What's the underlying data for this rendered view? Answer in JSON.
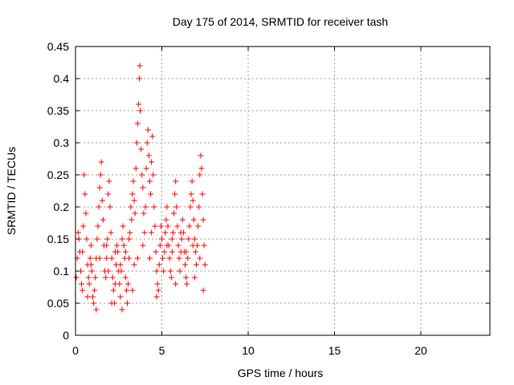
{
  "chart_data": {
    "type": "scatter",
    "title": "Day 175 of 2014, SRMTID for receiver tash",
    "xlabel": "GPS time / hours",
    "ylabel": "SRMTID / TECUs",
    "xlim": [
      0,
      24
    ],
    "ylim": [
      0,
      0.45
    ],
    "xticks": [
      "0",
      "5",
      "10",
      "15",
      "20"
    ],
    "yticks": [
      "0",
      "0.05",
      "0.1",
      "0.15",
      "0.2",
      "0.25",
      "0.3",
      "0.35",
      "0.4",
      "0.45"
    ],
    "grid": true,
    "series": [
      {
        "name": "SRMTID",
        "marker": "+",
        "color": "#ff0000",
        "points": [
          [
            0.05,
            0.09
          ],
          [
            0.1,
            0.12
          ],
          [
            0.15,
            0.16
          ],
          [
            0.2,
            0.15
          ],
          [
            0.25,
            0.13
          ],
          [
            0.3,
            0.1
          ],
          [
            0.35,
            0.08
          ],
          [
            0.4,
            0.07
          ],
          [
            0.45,
            0.17
          ],
          [
            0.5,
            0.25
          ],
          [
            0.55,
            0.22
          ],
          [
            0.6,
            0.19
          ],
          [
            0.65,
            0.15
          ],
          [
            0.7,
            0.11
          ],
          [
            0.75,
            0.09
          ],
          [
            0.8,
            0.08
          ],
          [
            0.85,
            0.12
          ],
          [
            0.9,
            0.14
          ],
          [
            0.95,
            0.1
          ],
          [
            1.0,
            0.06
          ],
          [
            1.05,
            0.05
          ],
          [
            1.1,
            0.07
          ],
          [
            1.15,
            0.09
          ],
          [
            1.2,
            0.12
          ],
          [
            1.25,
            0.15
          ],
          [
            1.3,
            0.17
          ],
          [
            1.35,
            0.2
          ],
          [
            1.4,
            0.23
          ],
          [
            1.45,
            0.25
          ],
          [
            1.5,
            0.27
          ],
          [
            1.55,
            0.21
          ],
          [
            1.6,
            0.18
          ],
          [
            1.65,
            0.14
          ],
          [
            1.7,
            0.1
          ],
          [
            1.75,
            0.09
          ],
          [
            1.8,
            0.12
          ],
          [
            1.85,
            0.15
          ],
          [
            1.9,
            0.22
          ],
          [
            1.95,
            0.24
          ],
          [
            2.0,
            0.2
          ],
          [
            2.05,
            0.16
          ],
          [
            2.1,
            0.12
          ],
          [
            2.15,
            0.09
          ],
          [
            2.2,
            0.07
          ],
          [
            2.25,
            0.05
          ],
          [
            2.3,
            0.08
          ],
          [
            2.35,
            0.11
          ],
          [
            2.4,
            0.14
          ],
          [
            2.45,
            0.13
          ],
          [
            2.5,
            0.1
          ],
          [
            2.55,
            0.08
          ],
          [
            2.6,
            0.06
          ],
          [
            2.65,
            0.1
          ],
          [
            2.7,
            0.15
          ],
          [
            2.75,
            0.17
          ],
          [
            2.8,
            0.14
          ],
          [
            2.85,
            0.12
          ],
          [
            2.9,
            0.09
          ],
          [
            2.95,
            0.07
          ],
          [
            3.0,
            0.05
          ],
          [
            3.05,
            0.08
          ],
          [
            3.1,
            0.12
          ],
          [
            3.15,
            0.16
          ],
          [
            3.2,
            0.2
          ],
          [
            3.25,
            0.18
          ],
          [
            3.3,
            0.22
          ],
          [
            3.35,
            0.24
          ],
          [
            3.4,
            0.21
          ],
          [
            3.45,
            0.19
          ],
          [
            3.5,
            0.26
          ],
          [
            3.55,
            0.3
          ],
          [
            3.6,
            0.33
          ],
          [
            3.65,
            0.36
          ],
          [
            3.7,
            0.4
          ],
          [
            3.72,
            0.42
          ],
          [
            3.75,
            0.35
          ],
          [
            3.8,
            0.29
          ],
          [
            3.85,
            0.25
          ],
          [
            3.9,
            0.23
          ],
          [
            3.95,
            0.19
          ],
          [
            4.0,
            0.16
          ],
          [
            4.05,
            0.2
          ],
          [
            4.1,
            0.26
          ],
          [
            4.15,
            0.3
          ],
          [
            4.2,
            0.32
          ],
          [
            4.25,
            0.28
          ],
          [
            4.3,
            0.24
          ],
          [
            4.35,
            0.22
          ],
          [
            4.4,
            0.27
          ],
          [
            4.45,
            0.31
          ],
          [
            4.5,
            0.25
          ],
          [
            4.55,
            0.2
          ],
          [
            4.6,
            0.17
          ],
          [
            4.65,
            0.13
          ],
          [
            4.7,
            0.1
          ],
          [
            4.75,
            0.08
          ],
          [
            4.8,
            0.07
          ],
          [
            4.85,
            0.11
          ],
          [
            4.9,
            0.14
          ],
          [
            4.95,
            0.17
          ],
          [
            5.0,
            0.15
          ],
          [
            5.05,
            0.12
          ],
          [
            5.1,
            0.1
          ],
          [
            5.15,
            0.13
          ],
          [
            5.2,
            0.16
          ],
          [
            5.25,
            0.18
          ],
          [
            5.3,
            0.2
          ],
          [
            5.35,
            0.17
          ],
          [
            5.4,
            0.14
          ],
          [
            5.45,
            0.12
          ],
          [
            5.5,
            0.1
          ],
          [
            5.55,
            0.09
          ],
          [
            5.6,
            0.13
          ],
          [
            5.65,
            0.16
          ],
          [
            5.7,
            0.19
          ],
          [
            5.75,
            0.22
          ],
          [
            5.8,
            0.24
          ],
          [
            5.85,
            0.2
          ],
          [
            5.9,
            0.17
          ],
          [
            5.95,
            0.14
          ],
          [
            6.0,
            0.12
          ],
          [
            6.05,
            0.1
          ],
          [
            6.1,
            0.13
          ],
          [
            6.15,
            0.15
          ],
          [
            6.2,
            0.18
          ],
          [
            6.25,
            0.16
          ],
          [
            6.3,
            0.13
          ],
          [
            6.35,
            0.11
          ],
          [
            6.4,
            0.09
          ],
          [
            6.45,
            0.08
          ],
          [
            6.5,
            0.12
          ],
          [
            6.55,
            0.15
          ],
          [
            6.6,
            0.17
          ],
          [
            6.65,
            0.2
          ],
          [
            6.7,
            0.22
          ],
          [
            6.75,
            0.24
          ],
          [
            6.8,
            0.21
          ],
          [
            6.85,
            0.18
          ],
          [
            6.9,
            0.15
          ],
          [
            6.95,
            0.13
          ],
          [
            7.0,
            0.11
          ],
          [
            7.05,
            0.14
          ],
          [
            7.1,
            0.17
          ],
          [
            7.15,
            0.2
          ],
          [
            7.2,
            0.25
          ],
          [
            7.25,
            0.28
          ],
          [
            7.3,
            0.26
          ],
          [
            7.35,
            0.22
          ],
          [
            7.4,
            0.18
          ],
          [
            7.45,
            0.14
          ],
          [
            7.5,
            0.11
          ],
          [
            7.4,
            0.07
          ],
          [
            1.2,
            0.04
          ],
          [
            2.1,
            0.05
          ],
          [
            3.3,
            0.07
          ],
          [
            4.7,
            0.06
          ],
          [
            5.8,
            0.08
          ],
          [
            6.9,
            0.09
          ],
          [
            0.7,
            0.06
          ],
          [
            2.7,
            0.04
          ],
          [
            1.8,
            0.14
          ],
          [
            2.3,
            0.13
          ],
          [
            3.1,
            0.15
          ],
          [
            3.9,
            0.14
          ],
          [
            4.4,
            0.16
          ],
          [
            5.3,
            0.14
          ],
          [
            6.1,
            0.16
          ],
          [
            6.8,
            0.14
          ],
          [
            0.4,
            0.13
          ],
          [
            1.4,
            0.12
          ],
          [
            2.6,
            0.11
          ],
          [
            3.6,
            0.12
          ],
          [
            4.3,
            0.12
          ],
          [
            5.6,
            0.15
          ],
          [
            6.4,
            0.13
          ],
          [
            7.2,
            0.12
          ],
          [
            0.9,
            0.11
          ],
          [
            1.9,
            0.1
          ],
          [
            2.9,
            0.13
          ],
          [
            3.4,
            0.11
          ]
        ]
      }
    ]
  }
}
